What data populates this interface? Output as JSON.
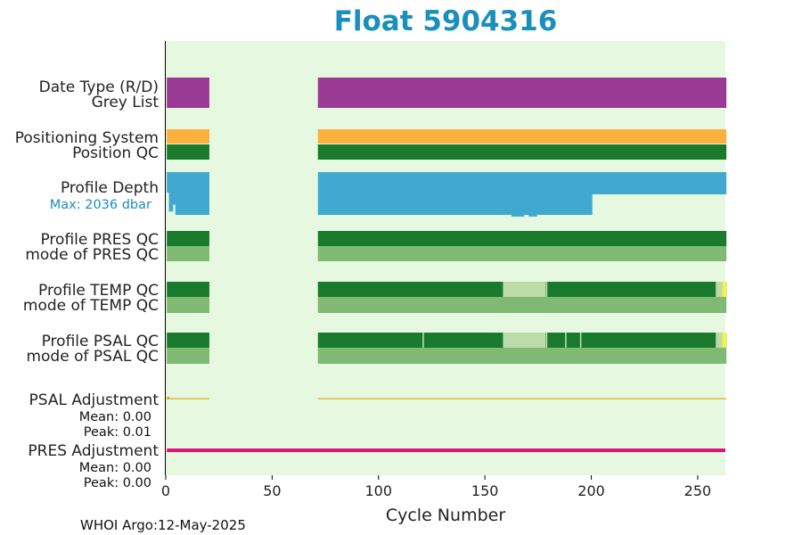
{
  "chart_data": {
    "type": "timeline",
    "title": "Float 5904316",
    "xlabel": "Cycle Number",
    "xlim": [
      0,
      263
    ],
    "xticks": [
      0,
      50,
      100,
      150,
      200,
      250
    ],
    "footer": "WHOI Argo:12-May-2025",
    "segments_cycles": [
      [
        1,
        20
      ],
      [
        72,
        263
      ]
    ],
    "colors": {
      "background": "#e6f8e0",
      "date_type": "#993b95",
      "positioning": "#fbb13c",
      "qc_good": "#197a2e",
      "qc_mode": "#7fb973",
      "qc_probably_good": "#bcdba9",
      "qc_flag_yellow": "#f5f53c",
      "profile_depth": "#41a9d0",
      "psal_adjustment": "#e0a81e",
      "pres_adjustment": "#e0137a"
    },
    "rows": {
      "date_type": {
        "label": "Date Type (R/D)"
      },
      "grey_list": {
        "label": "Grey List"
      },
      "positioning_system": {
        "label": "Positioning System"
      },
      "position_qc": {
        "label": "Position QC"
      },
      "profile_depth": {
        "label": "Profile Depth",
        "max_label": "Max: 2036 dbar",
        "max_dbar": 2036
      },
      "profile_pres_qc": {
        "label": "Profile PRES QC"
      },
      "mode_pres_qc": {
        "label": "mode of PRES QC"
      },
      "profile_temp_qc": {
        "label": "Profile TEMP QC",
        "probably_good_ranges": [
          [
            159,
            178
          ],
          [
            259,
            263
          ]
        ],
        "gaps": [
          179
        ]
      },
      "mode_temp_qc": {
        "label": "mode of TEMP QC"
      },
      "profile_psal_qc": {
        "label": "Profile PSAL QC",
        "probably_good_ranges": [
          [
            159,
            178
          ],
          [
            259,
            263
          ]
        ],
        "gaps": [
          121,
          179,
          188,
          195
        ]
      },
      "mode_psal_qc": {
        "label": "mode of PSAL QC"
      },
      "psal_adjustment": {
        "label": "PSAL Adjustment",
        "mean_label": "Mean: 0.00",
        "peak_label": "Peak: 0.01",
        "mean": 0.0,
        "peak": 0.01
      },
      "pres_adjustment": {
        "label": "PRES Adjustment",
        "mean_label": "Mean: 0.00",
        "peak_label": "Peak: 0.00",
        "mean": 0.0,
        "peak": 0.0
      }
    }
  }
}
